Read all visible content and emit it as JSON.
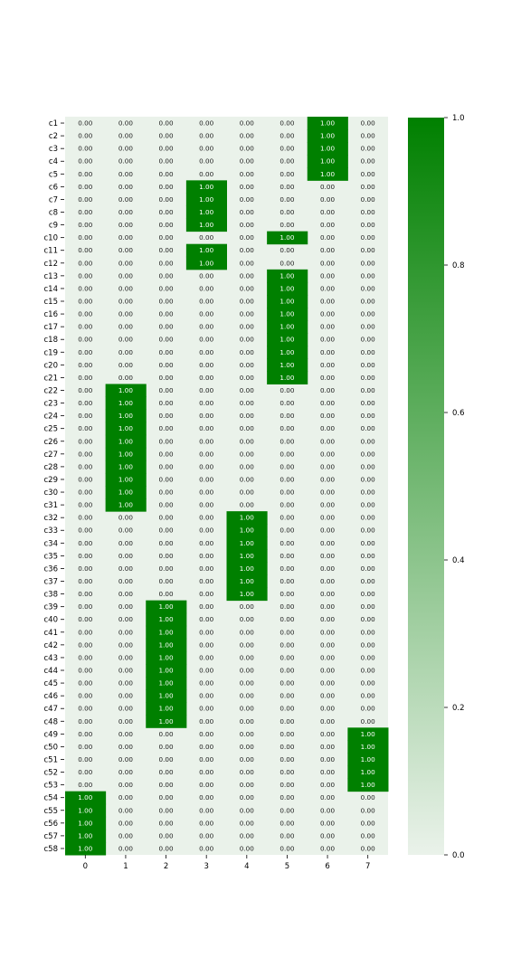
{
  "chart_data": {
    "type": "heatmap",
    "title": "",
    "xlabel": "",
    "ylabel": "",
    "x_categories": [
      "0",
      "1",
      "2",
      "3",
      "4",
      "5",
      "6",
      "7"
    ],
    "y_categories": [
      "c1",
      "c2",
      "c3",
      "c4",
      "c5",
      "c6",
      "c7",
      "c8",
      "c9",
      "c10",
      "c11",
      "c12",
      "c13",
      "c14",
      "c15",
      "c16",
      "c17",
      "c18",
      "c19",
      "c20",
      "c21",
      "c22",
      "c23",
      "c24",
      "c25",
      "c26",
      "c27",
      "c28",
      "c29",
      "c30",
      "c31",
      "c32",
      "c33",
      "c34",
      "c35",
      "c36",
      "c37",
      "c38",
      "c39",
      "c40",
      "c41",
      "c42",
      "c43",
      "c44",
      "c45",
      "c46",
      "c47",
      "c48",
      "c49",
      "c50",
      "c51",
      "c52",
      "c53",
      "c54",
      "c55",
      "c56",
      "c57",
      "c58"
    ],
    "hot_column_per_row": [
      6,
      6,
      6,
      6,
      6,
      3,
      3,
      3,
      3,
      5,
      3,
      3,
      5,
      5,
      5,
      5,
      5,
      5,
      5,
      5,
      5,
      1,
      1,
      1,
      1,
      1,
      1,
      1,
      1,
      1,
      1,
      4,
      4,
      4,
      4,
      4,
      4,
      4,
      2,
      2,
      2,
      2,
      2,
      2,
      2,
      2,
      2,
      2,
      7,
      7,
      7,
      7,
      7,
      0,
      0,
      0,
      0,
      0
    ],
    "value_on": 1.0,
    "value_off": 0.0,
    "value_format": "0.00",
    "colorbar": {
      "range": [
        0.0,
        1.0
      ],
      "ticks": [
        "0.0",
        "0.2",
        "0.4",
        "0.6",
        "0.8",
        "1.0"
      ],
      "color_low": "#eaf2ea",
      "color_high": "#008000"
    },
    "text_color_on": "#ffffff",
    "text_color_off": "#1a1a1a",
    "tick_color": "#000000"
  }
}
